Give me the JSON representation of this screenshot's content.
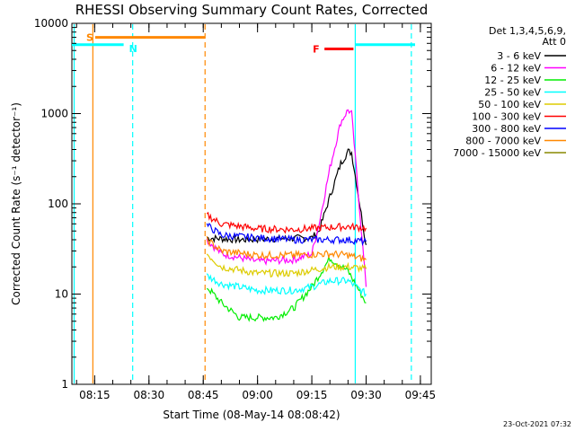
{
  "chart_data": {
    "type": "line",
    "title": "RHESSI Observing Summary Count Rates, Corrected",
    "xlabel": "Start Time (08-May-14 08:08:42)",
    "ylabel": "Corrected Count Rate (s⁻¹ detector⁻¹)",
    "ylog": true,
    "ylim": [
      1,
      10000
    ],
    "xlim": [
      "08:08:42",
      "09:48:00"
    ],
    "x_ticks": [
      "08:15",
      "08:30",
      "08:45",
      "09:00",
      "09:15",
      "09:30",
      "09:45"
    ],
    "y_ticks": [
      "1",
      "10",
      "100",
      "1000",
      "10000"
    ],
    "grid": false,
    "legend_position": "right",
    "legend_header": [
      "Det 1,3,4,5,6,9,",
      "Att 0"
    ],
    "series": [
      {
        "name": "3 - 6 keV",
        "color": "#000000",
        "x": [
          "08:46",
          "08:55",
          "09:05",
          "09:15",
          "09:17",
          "09:20",
          "09:23",
          "09:25",
          "09:26",
          "09:30"
        ],
        "values": [
          42,
          40,
          41,
          42,
          50,
          120,
          280,
          380,
          370,
          35
        ]
      },
      {
        "name": "6 - 12 keV",
        "color": "#ff00ff",
        "x": [
          "08:46",
          "08:50",
          "09:00",
          "09:10",
          "09:15",
          "09:17",
          "09:20",
          "09:23",
          "09:25",
          "09:26",
          "09:30"
        ],
        "values": [
          40,
          28,
          23,
          24,
          28,
          60,
          250,
          800,
          1100,
          1000,
          12
        ]
      },
      {
        "name": "12 - 25 keV",
        "color": "#00ee00",
        "x": [
          "08:46",
          "08:50",
          "08:55",
          "09:05",
          "09:10",
          "09:15",
          "09:20",
          "09:25",
          "09:30"
        ],
        "values": [
          12,
          8,
          5.5,
          5.5,
          7,
          12,
          25,
          18,
          8
        ]
      },
      {
        "name": "25 - 50 keV",
        "color": "#00ffff",
        "x": [
          "08:46",
          "08:50",
          "09:00",
          "09:10",
          "09:15",
          "09:20",
          "09:25",
          "09:30"
        ],
        "values": [
          16,
          13,
          11,
          11,
          12,
          14,
          14,
          10
        ]
      },
      {
        "name": "50 - 100 keV",
        "color": "#ddcc00",
        "x": [
          "08:46",
          "08:50",
          "09:00",
          "09:10",
          "09:20",
          "09:25",
          "09:30"
        ],
        "values": [
          28,
          20,
          17,
          17,
          20,
          20,
          19
        ]
      },
      {
        "name": "100 - 300 keV",
        "color": "#ff0000",
        "x": [
          "08:46",
          "08:50",
          "09:00",
          "09:10",
          "09:20",
          "09:25",
          "09:30"
        ],
        "values": [
          75,
          60,
          53,
          52,
          55,
          56,
          54
        ]
      },
      {
        "name": "300 - 800 keV",
        "color": "#0000ff",
        "x": [
          "08:46",
          "08:50",
          "09:00",
          "09:10",
          "09:20",
          "09:25",
          "09:30"
        ],
        "values": [
          58,
          45,
          42,
          40,
          40,
          40,
          38
        ]
      },
      {
        "name": "800 - 7000 keV",
        "color": "#ff8800",
        "x": [
          "08:46",
          "08:50",
          "09:00",
          "09:10",
          "09:20",
          "09:25",
          "09:30"
        ],
        "values": [
          40,
          30,
          27,
          27,
          28,
          27,
          24
        ]
      },
      {
        "name": "7000 - 15000 keV",
        "color": "#888800",
        "x": [],
        "values": []
      }
    ],
    "annotations": [
      {
        "label": "S",
        "color": "#ff8800",
        "bar_start": "08:08:42",
        "bar_end": "08:45:30",
        "marker": "08:14:30",
        "level": 7000
      },
      {
        "label": "N",
        "color": "#00ffff",
        "bar_start": "08:08:42",
        "bar_end": "08:23:00",
        "level": 5800
      },
      {
        "label": "F",
        "color": "#ff0000",
        "bar_start": "09:18:30",
        "bar_end": "09:26:30",
        "level": 5200
      }
    ],
    "vertical_lines": [
      {
        "time": "08:09:20",
        "color": "#00ffff",
        "style": "solid"
      },
      {
        "time": "08:14:30",
        "color": "#ff8800",
        "style": "solid"
      },
      {
        "time": "08:25:30",
        "color": "#00ffff",
        "style": "dashed"
      },
      {
        "time": "08:45:30",
        "color": "#ff8800",
        "style": "dashed"
      },
      {
        "time": "09:27:00",
        "color": "#00ffff",
        "style": "solid"
      },
      {
        "time": "09:42:30",
        "color": "#00ffff",
        "style": "dashed"
      }
    ],
    "night_bars": [
      {
        "color": "#00ffff",
        "start": "08:08:42",
        "end": "08:23:00",
        "level": 5800
      },
      {
        "color": "#00ffff",
        "start": "09:27:00",
        "end": "09:48:00",
        "level": 5800
      }
    ]
  },
  "footer": {
    "timestamp": "23-Oct-2021 07:32"
  }
}
